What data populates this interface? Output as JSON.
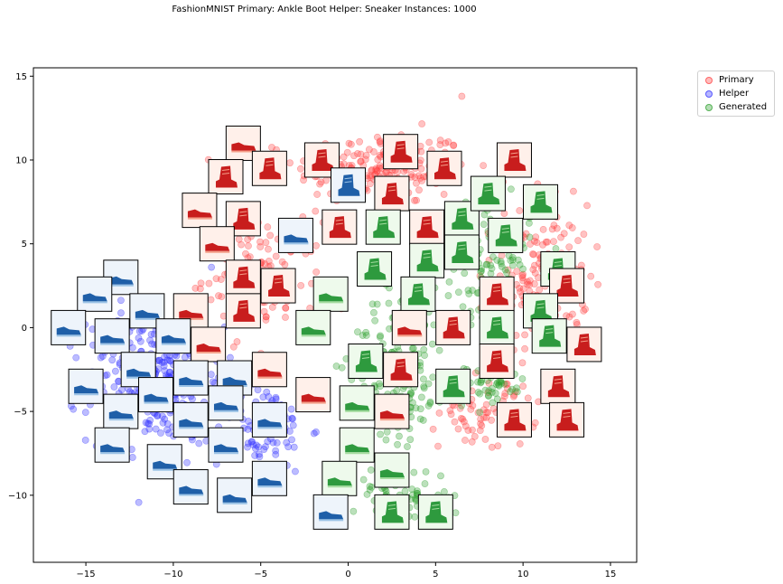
{
  "chart_data": {
    "type": "scatter",
    "title": "FashionMNIST Primary: Ankle Boot Helper: Sneaker Instances: 1000",
    "xlabel": "",
    "ylabel": "",
    "xlim": [
      -18,
      16.5
    ],
    "ylim": [
      -14,
      15.5
    ],
    "xticks": [
      -15,
      -10,
      -5,
      0,
      5,
      10,
      15
    ],
    "yticks": [
      -10,
      -5,
      0,
      5,
      10,
      15
    ],
    "grid": false,
    "legend_position": "outside top-right",
    "series": [
      {
        "name": "Primary",
        "color": "#ff4040",
        "clusters": [
          {
            "cx": 2,
            "cy": 9.5,
            "sx": 4.5,
            "sy": 2,
            "n": 230
          },
          {
            "cx": 11,
            "cy": 3,
            "sx": 2.5,
            "sy": 4,
            "n": 170
          },
          {
            "cx": -5,
            "cy": 3,
            "sx": 3,
            "sy": 3,
            "n": 140
          },
          {
            "cx": 8,
            "cy": -5,
            "sx": 2.5,
            "sy": 2,
            "n": 80
          }
        ],
        "outliers": [
          [
            6.5,
            13.8
          ]
        ]
      },
      {
        "name": "Helper",
        "color": "#3030ff",
        "clusters": [
          {
            "cx": -11,
            "cy": -3,
            "sx": 3.5,
            "sy": 3.5,
            "n": 320
          },
          {
            "cx": -5,
            "cy": -6,
            "sx": 2.5,
            "sy": 2.5,
            "n": 100
          }
        ],
        "outliers": []
      },
      {
        "name": "Generated",
        "color": "#2ca02c",
        "clusters": [
          {
            "cx": 3,
            "cy": -2,
            "sx": 2.5,
            "sy": 4,
            "n": 180
          },
          {
            "cx": 8,
            "cy": 4,
            "sx": 2.2,
            "sy": 3,
            "n": 110
          },
          {
            "cx": 3,
            "cy": -10,
            "sx": 2.5,
            "sy": 1.5,
            "n": 70
          },
          {
            "cx": 8,
            "cy": -3.5,
            "sx": 2,
            "sy": 1.2,
            "n": 50
          }
        ],
        "outliers": []
      }
    ],
    "thumbnails": [
      {
        "x": -6,
        "y": 11,
        "kind": "red-shoe"
      },
      {
        "x": -7,
        "y": 9,
        "kind": "red-boot"
      },
      {
        "x": -4.5,
        "y": 9.5,
        "kind": "red-boot"
      },
      {
        "x": -1.5,
        "y": 10,
        "kind": "red-boot"
      },
      {
        "x": 3,
        "y": 10.5,
        "kind": "red-boot"
      },
      {
        "x": 5.5,
        "y": 9.5,
        "kind": "red-boot"
      },
      {
        "x": 9.5,
        "y": 10,
        "kind": "red-boot"
      },
      {
        "x": 0,
        "y": 8.5,
        "kind": "blue-boot"
      },
      {
        "x": 2.5,
        "y": 8,
        "kind": "red-boot"
      },
      {
        "x": -8.5,
        "y": 7,
        "kind": "red-shoe"
      },
      {
        "x": -6,
        "y": 6.5,
        "kind": "red-boot"
      },
      {
        "x": -3,
        "y": 5.5,
        "kind": "blue-shoe"
      },
      {
        "x": -7.5,
        "y": 5,
        "kind": "red-shoe"
      },
      {
        "x": -0.5,
        "y": 6,
        "kind": "red-boot"
      },
      {
        "x": 2,
        "y": 6,
        "kind": "green-boot"
      },
      {
        "x": 4.5,
        "y": 6,
        "kind": "red-boot"
      },
      {
        "x": 6.5,
        "y": 6.5,
        "kind": "green-boot"
      },
      {
        "x": 8,
        "y": 8,
        "kind": "green-boot"
      },
      {
        "x": 11,
        "y": 7.5,
        "kind": "green-boot"
      },
      {
        "x": 9,
        "y": 5.5,
        "kind": "green-boot"
      },
      {
        "x": 4.5,
        "y": 4,
        "kind": "green-boot"
      },
      {
        "x": 6.5,
        "y": 4.5,
        "kind": "green-boot"
      },
      {
        "x": 1.5,
        "y": 3.5,
        "kind": "green-boot"
      },
      {
        "x": -6,
        "y": 3,
        "kind": "red-boot"
      },
      {
        "x": -4,
        "y": 2.5,
        "kind": "red-boot"
      },
      {
        "x": -1,
        "y": 2,
        "kind": "green-shoe"
      },
      {
        "x": -13,
        "y": 3,
        "kind": "blue-shoe"
      },
      {
        "x": -14.5,
        "y": 2,
        "kind": "blue-shoe"
      },
      {
        "x": -9,
        "y": 1,
        "kind": "red-shoe"
      },
      {
        "x": -11.5,
        "y": 1,
        "kind": "blue-shoe"
      },
      {
        "x": -6,
        "y": 1,
        "kind": "red-boot"
      },
      {
        "x": 12,
        "y": 3.5,
        "kind": "green-boot"
      },
      {
        "x": 12.5,
        "y": 2.5,
        "kind": "red-boot"
      },
      {
        "x": 8.5,
        "y": 2,
        "kind": "red-boot"
      },
      {
        "x": 4,
        "y": 2,
        "kind": "green-boot"
      },
      {
        "x": 11,
        "y": 1,
        "kind": "green-boot"
      },
      {
        "x": 6,
        "y": 0,
        "kind": "red-boot"
      },
      {
        "x": 3.5,
        "y": 0,
        "kind": "red-shoe"
      },
      {
        "x": 8.5,
        "y": 0,
        "kind": "green-boot"
      },
      {
        "x": -2,
        "y": 0,
        "kind": "green-shoe"
      },
      {
        "x": -16,
        "y": 0,
        "kind": "blue-shoe"
      },
      {
        "x": -13.5,
        "y": -0.5,
        "kind": "blue-shoe"
      },
      {
        "x": -10,
        "y": -0.5,
        "kind": "blue-shoe"
      },
      {
        "x": -8,
        "y": -1,
        "kind": "red-shoe"
      },
      {
        "x": 11.5,
        "y": -0.5,
        "kind": "green-boot"
      },
      {
        "x": 13.5,
        "y": -1,
        "kind": "red-boot"
      },
      {
        "x": -12,
        "y": -2.5,
        "kind": "blue-shoe"
      },
      {
        "x": -9,
        "y": -3,
        "kind": "blue-shoe"
      },
      {
        "x": -6.5,
        "y": -3,
        "kind": "blue-shoe"
      },
      {
        "x": -4.5,
        "y": -2.5,
        "kind": "red-shoe"
      },
      {
        "x": 1,
        "y": -2,
        "kind": "green-boot"
      },
      {
        "x": 3,
        "y": -2.5,
        "kind": "red-boot"
      },
      {
        "x": 8.5,
        "y": -2,
        "kind": "red-boot"
      },
      {
        "x": -15,
        "y": -3.5,
        "kind": "blue-shoe"
      },
      {
        "x": -11,
        "y": -4,
        "kind": "blue-shoe"
      },
      {
        "x": -7,
        "y": -4.5,
        "kind": "blue-shoe"
      },
      {
        "x": -2,
        "y": -4,
        "kind": "red-shoe"
      },
      {
        "x": 0.5,
        "y": -4.5,
        "kind": "green-shoe"
      },
      {
        "x": 6,
        "y": -3.5,
        "kind": "green-boot"
      },
      {
        "x": 12,
        "y": -3.5,
        "kind": "red-boot"
      },
      {
        "x": -13,
        "y": -5,
        "kind": "blue-shoe"
      },
      {
        "x": -9,
        "y": -5.5,
        "kind": "blue-shoe"
      },
      {
        "x": -4.5,
        "y": -5.5,
        "kind": "blue-shoe"
      },
      {
        "x": 2.5,
        "y": -5,
        "kind": "red-shoe"
      },
      {
        "x": 9.5,
        "y": -5.5,
        "kind": "red-boot"
      },
      {
        "x": 12.5,
        "y": -5.5,
        "kind": "red-boot"
      },
      {
        "x": -7,
        "y": -7,
        "kind": "blue-shoe"
      },
      {
        "x": -13.5,
        "y": -7,
        "kind": "blue-shoe"
      },
      {
        "x": 0.5,
        "y": -7,
        "kind": "green-shoe"
      },
      {
        "x": -10.5,
        "y": -8,
        "kind": "blue-shoe"
      },
      {
        "x": 2.5,
        "y": -8.5,
        "kind": "green-shoe"
      },
      {
        "x": -4.5,
        "y": -9,
        "kind": "blue-shoe"
      },
      {
        "x": -0.5,
        "y": -9,
        "kind": "green-shoe"
      },
      {
        "x": -9,
        "y": -9.5,
        "kind": "blue-shoe"
      },
      {
        "x": -6.5,
        "y": -10,
        "kind": "blue-shoe"
      },
      {
        "x": -1,
        "y": -11,
        "kind": "blue-shoe"
      },
      {
        "x": 2.5,
        "y": -11,
        "kind": "green-boot"
      },
      {
        "x": 5,
        "y": -11,
        "kind": "green-boot"
      }
    ]
  }
}
